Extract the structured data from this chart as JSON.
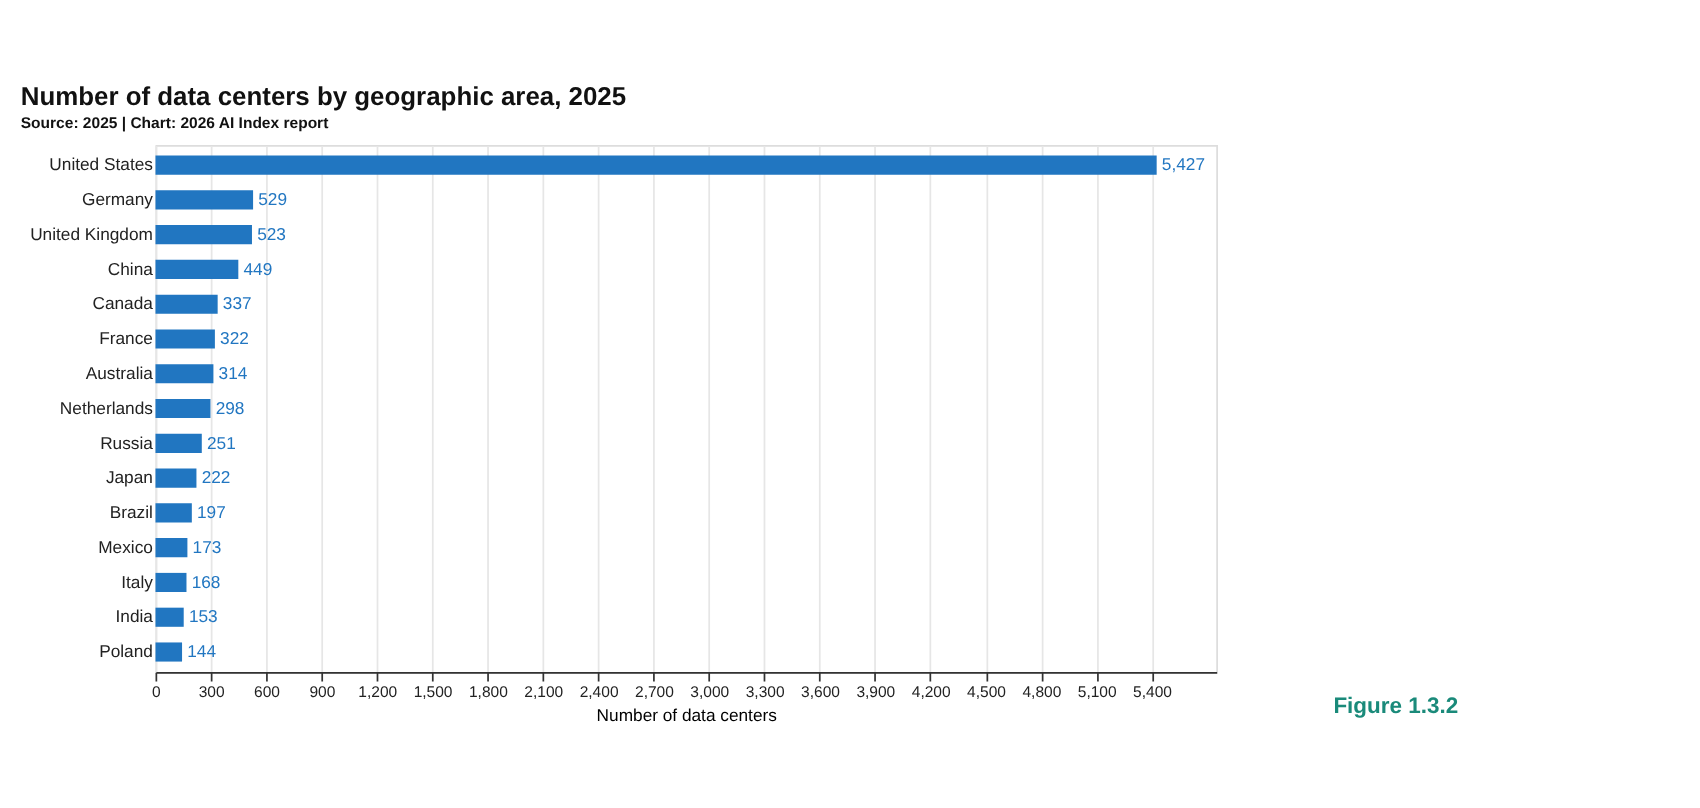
{
  "chart_data": {
    "type": "bar",
    "orientation": "horizontal",
    "title": "Number of data centers by geographic area, 2025",
    "subtitle": "Source: 2025 | Chart: 2026 AI Index report",
    "xlabel": "Number of data centers",
    "categories": [
      "United States",
      "Germany",
      "United Kingdom",
      "China",
      "Canada",
      "France",
      "Australia",
      "Netherlands",
      "Russia",
      "Japan",
      "Brazil",
      "Mexico",
      "Italy",
      "India",
      "Poland"
    ],
    "values": [
      5427,
      529,
      523,
      449,
      337,
      322,
      314,
      298,
      251,
      222,
      197,
      173,
      168,
      153,
      144
    ],
    "value_labels": [
      "5,427",
      "529",
      "523",
      "449",
      "337",
      "322",
      "314",
      "298",
      "251",
      "222",
      "197",
      "173",
      "168",
      "153",
      "144"
    ],
    "color": "#2176c1",
    "xlim": [
      0,
      5750
    ],
    "xticks": [
      0,
      300,
      600,
      900,
      {
        "value": 1200,
        "label": "1,200"
      },
      {
        "value": 1500,
        "label": "1,500"
      },
      {
        "value": 1800,
        "label": "1,800"
      },
      {
        "value": 2100,
        "label": "2,100"
      },
      {
        "value": 2400,
        "label": "2,400"
      },
      {
        "value": 2700,
        "label": "2,700"
      },
      {
        "value": 3000,
        "label": "3,000"
      },
      {
        "value": 3300,
        "label": "3,300"
      },
      {
        "value": 3600,
        "label": "3,600"
      },
      {
        "value": 3900,
        "label": "3,900"
      },
      {
        "value": 4200,
        "label": "4,200"
      },
      {
        "value": 4500,
        "label": "4,500"
      },
      {
        "value": 4800,
        "label": "4,800"
      },
      {
        "value": 5100,
        "label": "5,100"
      },
      {
        "value": 5400,
        "label": "5,400"
      }
    ],
    "grid": "x",
    "annotations": [
      "Figure 1.3.2"
    ]
  }
}
